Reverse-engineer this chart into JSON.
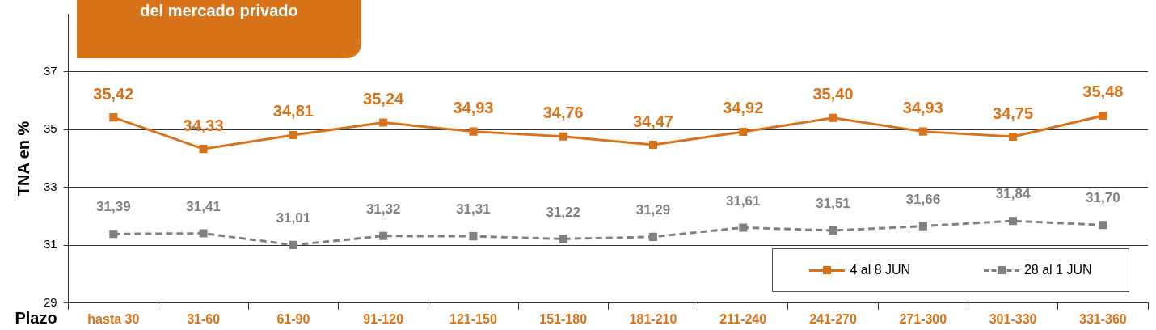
{
  "chart_data": {
    "type": "line",
    "title": "del mercado privado",
    "xlabel": "Plazo",
    "ylabel": "TNA en %",
    "categories": [
      "hasta 30",
      "31-60",
      "61-90",
      "91-120",
      "121-150",
      "151-180",
      "181-210",
      "211-240",
      "241-270",
      "271-300",
      "301-330",
      "331-360"
    ],
    "series": [
      {
        "name": "4 al 8 JUN",
        "color": "#d9731a",
        "line_style": "solid",
        "values": [
          35.42,
          34.33,
          34.81,
          35.24,
          34.93,
          34.76,
          34.47,
          34.92,
          35.4,
          34.93,
          34.75,
          35.48
        ],
        "value_labels": [
          "35,42",
          "34,33",
          "34,81",
          "35,24",
          "34,93",
          "34,76",
          "34,47",
          "34,92",
          "35,40",
          "34,93",
          "34,75",
          "35,48"
        ]
      },
      {
        "name": "28 al 1 JUN",
        "color": "#808080",
        "line_style": "dashed",
        "values": [
          31.39,
          31.41,
          31.01,
          31.32,
          31.31,
          31.22,
          31.29,
          31.61,
          31.51,
          31.66,
          31.84,
          31.7
        ],
        "value_labels": [
          "31,39",
          "31,41",
          "31,01",
          "31,32",
          "31,31",
          "31,22",
          "31,29",
          "31,61",
          "31,51",
          "31,66",
          "31,84",
          "31,70"
        ]
      }
    ],
    "ylim": [
      29,
      39
    ],
    "yticks": [
      29,
      31,
      33,
      35,
      37
    ],
    "grid": "y",
    "legend": "bottom right",
    "marker": "square"
  }
}
